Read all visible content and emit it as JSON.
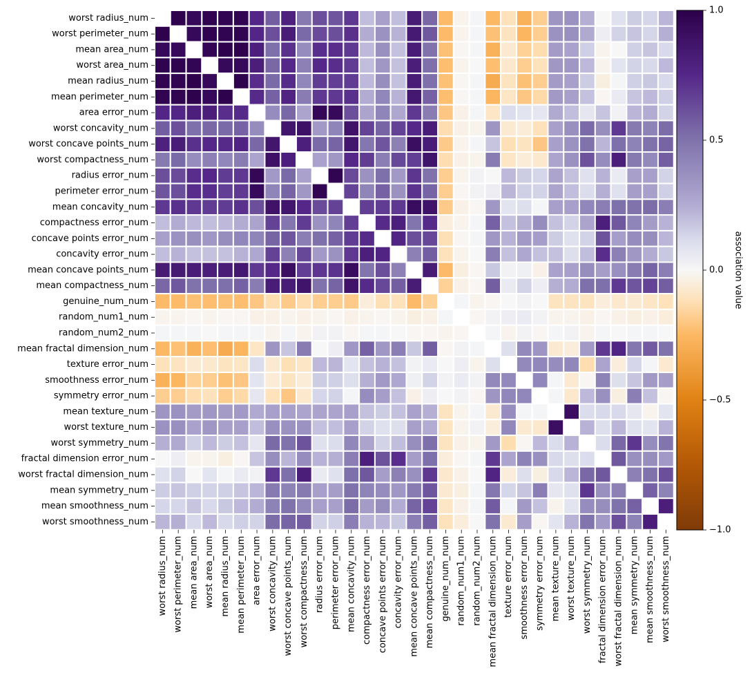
{
  "chart_data": {
    "type": "heatmap",
    "title": "",
    "xlabel": "",
    "ylabel": "",
    "labels": [
      "worst radius_num",
      "worst perimeter_num",
      "mean area_num",
      "worst area_num",
      "mean radius_num",
      "mean perimeter_num",
      "area error_num",
      "worst concavity_num",
      "worst concave points_num",
      "worst compactness_num",
      "radius error_num",
      "perimeter error_num",
      "mean concavity_num",
      "compactness error_num",
      "concave points error_num",
      "concavity error_num",
      "mean concave points_num",
      "mean compactness_num",
      "genuine_num_num",
      "random_num1_num",
      "random_num2_num",
      "mean fractal dimension_num",
      "texture error_num",
      "smoothness error_num",
      "symmetry error_num",
      "mean texture_num",
      "worst texture_num",
      "worst symmetry_num",
      "fractal dimension error_num",
      "worst fractal dimension_num",
      "mean symmetry_num",
      "mean smoothness_num",
      "worst smoothness_num"
    ],
    "values": [
      [
        null,
        0.99,
        0.94,
        0.98,
        0.97,
        0.97,
        0.76,
        0.57,
        0.79,
        0.47,
        0.62,
        0.6,
        0.69,
        0.2,
        0.3,
        0.2,
        0.83,
        0.54,
        -0.24,
        -0.02,
        0.01,
        -0.25,
        -0.11,
        -0.28,
        -0.18,
        0.35,
        0.36,
        0.24,
        0.0,
        0.09,
        0.16,
        0.13,
        0.22
      ],
      [
        0.99,
        null,
        0.94,
        0.98,
        0.97,
        0.97,
        0.76,
        0.62,
        0.82,
        0.53,
        0.63,
        0.62,
        0.72,
        0.25,
        0.36,
        0.23,
        0.84,
        0.59,
        -0.24,
        -0.02,
        0.01,
        -0.22,
        -0.1,
        -0.26,
        -0.18,
        0.36,
        0.37,
        0.26,
        0.04,
        0.14,
        0.18,
        0.13,
        0.24
      ],
      [
        0.94,
        0.94,
        null,
        0.96,
        0.99,
        0.99,
        0.8,
        0.51,
        0.72,
        0.39,
        0.73,
        0.73,
        0.69,
        0.21,
        0.37,
        0.19,
        0.82,
        0.5,
        -0.22,
        -0.01,
        0.01,
        -0.28,
        -0.07,
        -0.17,
        -0.13,
        0.32,
        0.29,
        0.15,
        -0.02,
        0.0,
        0.15,
        0.18,
        0.12
      ],
      [
        0.98,
        0.98,
        0.96,
        null,
        0.94,
        0.94,
        0.81,
        0.54,
        0.75,
        0.44,
        0.75,
        0.73,
        0.68,
        0.2,
        0.34,
        0.19,
        0.81,
        0.51,
        -0.23,
        -0.02,
        0.0,
        -0.23,
        -0.08,
        -0.18,
        -0.11,
        0.34,
        0.34,
        0.21,
        -0.02,
        0.08,
        0.14,
        0.12,
        0.21
      ],
      [
        0.97,
        0.97,
        0.99,
        0.94,
        null,
        0.99,
        0.73,
        0.53,
        0.74,
        0.41,
        0.68,
        0.67,
        0.68,
        0.21,
        0.38,
        0.19,
        0.82,
        0.51,
        -0.22,
        -0.01,
        0.01,
        -0.31,
        -0.1,
        -0.22,
        -0.18,
        0.32,
        0.3,
        0.16,
        -0.04,
        0.01,
        0.15,
        0.17,
        0.12
      ],
      [
        0.97,
        0.97,
        0.99,
        0.94,
        0.99,
        null,
        0.74,
        0.56,
        0.77,
        0.46,
        0.69,
        0.69,
        0.72,
        0.25,
        0.41,
        0.23,
        0.85,
        0.56,
        -0.23,
        -0.01,
        0.01,
        -0.26,
        -0.09,
        -0.2,
        -0.14,
        0.33,
        0.3,
        0.19,
        -0.01,
        0.05,
        0.18,
        0.21,
        0.15
      ],
      [
        0.76,
        0.76,
        0.8,
        0.81,
        0.73,
        0.74,
        null,
        0.39,
        0.54,
        0.28,
        0.95,
        0.94,
        0.62,
        0.28,
        0.42,
        0.27,
        0.69,
        0.46,
        -0.2,
        -0.03,
        0.01,
        -0.09,
        0.11,
        0.08,
        0.07,
        0.26,
        0.2,
        0.07,
        0.18,
        0.02,
        0.22,
        0.25,
        0.14
      ],
      [
        0.57,
        0.62,
        0.51,
        0.54,
        0.53,
        0.56,
        0.39,
        null,
        0.86,
        0.89,
        0.33,
        0.42,
        0.88,
        0.66,
        0.55,
        0.66,
        0.75,
        0.82,
        -0.13,
        -0.03,
        -0.02,
        0.35,
        -0.07,
        -0.06,
        -0.11,
        0.3,
        0.37,
        0.53,
        0.38,
        0.69,
        0.47,
        0.43,
        0.52
      ],
      [
        0.79,
        0.82,
        0.72,
        0.75,
        0.74,
        0.77,
        0.54,
        0.86,
        null,
        0.8,
        0.53,
        0.55,
        0.86,
        0.48,
        0.6,
        0.44,
        0.91,
        0.82,
        -0.19,
        -0.02,
        0.01,
        0.18,
        -0.12,
        -0.1,
        -0.2,
        0.3,
        0.36,
        0.5,
        0.22,
        0.51,
        0.43,
        0.5,
        0.55
      ],
      [
        0.47,
        0.53,
        0.39,
        0.44,
        0.41,
        0.46,
        0.28,
        0.89,
        0.8,
        null,
        0.29,
        0.34,
        0.75,
        0.68,
        0.45,
        0.64,
        0.67,
        0.87,
        -0.13,
        -0.03,
        -0.02,
        0.46,
        -0.09,
        -0.06,
        -0.08,
        0.28,
        0.36,
        0.61,
        0.39,
        0.81,
        0.47,
        0.4,
        0.57
      ],
      [
        0.62,
        0.63,
        0.73,
        0.75,
        0.68,
        0.69,
        0.95,
        0.33,
        0.53,
        0.29,
        null,
        0.97,
        0.63,
        0.36,
        0.51,
        0.33,
        0.7,
        0.5,
        -0.18,
        -0.02,
        0.02,
        0.0,
        0.21,
        0.16,
        0.13,
        0.28,
        0.19,
        0.09,
        0.23,
        0.05,
        0.3,
        0.3,
        0.14
      ],
      [
        0.6,
        0.62,
        0.73,
        0.73,
        0.67,
        0.69,
        0.94,
        0.42,
        0.55,
        0.34,
        0.97,
        null,
        0.66,
        0.42,
        0.56,
        0.36,
        0.71,
        0.55,
        -0.18,
        -0.01,
        0.02,
        0.04,
        0.22,
        0.15,
        0.14,
        0.28,
        0.2,
        0.11,
        0.24,
        0.09,
        0.31,
        0.3,
        0.15
      ],
      [
        0.69,
        0.72,
        0.69,
        0.68,
        0.68,
        0.72,
        0.62,
        0.88,
        0.86,
        0.75,
        0.63,
        0.66,
        null,
        0.67,
        0.68,
        0.69,
        0.92,
        0.88,
        -0.19,
        -0.03,
        -0.01,
        0.34,
        0.08,
        0.1,
        0.01,
        0.3,
        0.3,
        0.41,
        0.45,
        0.51,
        0.5,
        0.52,
        0.45
      ],
      [
        0.2,
        0.25,
        0.21,
        0.2,
        0.21,
        0.25,
        0.28,
        0.66,
        0.48,
        0.68,
        0.36,
        0.42,
        0.67,
        null,
        0.74,
        0.8,
        0.49,
        0.74,
        -0.05,
        -0.02,
        0.01,
        0.56,
        0.19,
        0.24,
        0.39,
        0.19,
        0.14,
        0.28,
        0.8,
        0.59,
        0.42,
        0.32,
        0.23
      ],
      [
        0.3,
        0.36,
        0.37,
        0.34,
        0.38,
        0.41,
        0.42,
        0.55,
        0.6,
        0.45,
        0.51,
        0.56,
        0.68,
        0.74,
        null,
        0.77,
        0.62,
        0.64,
        -0.12,
        -0.01,
        0.01,
        0.34,
        0.23,
        0.33,
        0.31,
        0.16,
        0.09,
        0.14,
        0.61,
        0.31,
        0.39,
        0.38,
        0.22
      ],
      [
        0.2,
        0.23,
        0.19,
        0.19,
        0.19,
        0.23,
        0.27,
        0.66,
        0.44,
        0.64,
        0.33,
        0.36,
        0.69,
        0.8,
        0.77,
        null,
        0.44,
        0.57,
        -0.11,
        -0.02,
        0.0,
        0.45,
        0.19,
        0.27,
        0.19,
        0.19,
        0.1,
        0.2,
        0.73,
        0.44,
        0.34,
        0.25,
        0.17
      ],
      [
        0.83,
        0.84,
        0.82,
        0.81,
        0.82,
        0.85,
        0.69,
        0.75,
        0.91,
        0.67,
        0.7,
        0.71,
        0.92,
        0.49,
        0.62,
        0.44,
        null,
        0.83,
        -0.24,
        -0.04,
        -0.01,
        0.17,
        0.02,
        0.03,
        -0.03,
        0.29,
        0.3,
        0.38,
        0.31,
        0.37,
        0.46,
        0.55,
        0.45
      ],
      [
        0.54,
        0.59,
        0.5,
        0.51,
        0.51,
        0.56,
        0.46,
        0.82,
        0.82,
        0.87,
        0.5,
        0.55,
        0.88,
        0.74,
        0.64,
        0.57,
        0.83,
        null,
        -0.17,
        -0.03,
        -0.01,
        0.57,
        0.05,
        0.14,
        0.04,
        0.24,
        0.25,
        0.51,
        0.51,
        0.69,
        0.6,
        0.66,
        0.57
      ],
      [
        -0.24,
        -0.24,
        -0.22,
        -0.23,
        -0.22,
        -0.23,
        -0.2,
        -0.13,
        -0.19,
        -0.13,
        -0.18,
        -0.18,
        -0.19,
        -0.05,
        -0.12,
        -0.11,
        -0.24,
        -0.17,
        null,
        0.01,
        -0.02,
        -0.01,
        0.0,
        0.02,
        0.0,
        -0.1,
        -0.1,
        -0.1,
        -0.05,
        -0.08,
        -0.07,
        -0.09,
        -0.11
      ],
      [
        -0.02,
        -0.02,
        -0.01,
        -0.02,
        -0.01,
        -0.01,
        -0.03,
        -0.03,
        -0.02,
        -0.03,
        -0.02,
        -0.01,
        -0.03,
        -0.02,
        -0.01,
        -0.02,
        -0.04,
        -0.03,
        0.01,
        null,
        -0.01,
        0.02,
        0.04,
        0.05,
        0.02,
        -0.02,
        -0.02,
        -0.03,
        -0.01,
        -0.03,
        -0.04,
        -0.03,
        -0.05
      ],
      [
        0.01,
        0.01,
        0.01,
        0.0,
        0.01,
        0.01,
        0.01,
        -0.02,
        0.01,
        -0.02,
        0.02,
        0.02,
        -0.01,
        0.01,
        0.01,
        0.0,
        -0.01,
        -0.01,
        -0.02,
        -0.01,
        null,
        0.01,
        -0.02,
        0.02,
        -0.01,
        0.01,
        0.02,
        -0.02,
        0.01,
        0.0,
        0.01,
        0.01,
        0.0
      ],
      [
        -0.25,
        -0.22,
        -0.28,
        -0.23,
        -0.31,
        -0.26,
        -0.09,
        0.35,
        0.18,
        0.46,
        0.0,
        0.04,
        0.34,
        0.56,
        0.34,
        0.45,
        0.17,
        0.57,
        -0.01,
        0.02,
        0.01,
        null,
        0.1,
        0.4,
        0.35,
        -0.07,
        -0.05,
        0.33,
        0.69,
        0.77,
        0.48,
        0.58,
        0.5
      ],
      [
        -0.11,
        -0.1,
        -0.07,
        -0.08,
        -0.1,
        -0.09,
        0.11,
        -0.07,
        -0.12,
        -0.09,
        0.21,
        0.22,
        0.08,
        0.19,
        0.23,
        0.19,
        0.02,
        0.05,
        0.0,
        0.04,
        -0.02,
        0.1,
        null,
        0.4,
        0.41,
        0.39,
        0.41,
        -0.13,
        0.28,
        -0.05,
        0.13,
        0.01,
        -0.07
      ],
      [
        -0.28,
        -0.26,
        -0.17,
        -0.18,
        -0.22,
        -0.2,
        0.08,
        -0.06,
        -0.1,
        -0.06,
        0.16,
        0.15,
        0.1,
        0.24,
        0.33,
        0.27,
        0.03,
        0.14,
        0.02,
        0.05,
        0.02,
        0.4,
        0.4,
        null,
        0.41,
        0.01,
        -0.07,
        -0.01,
        0.43,
        0.1,
        0.18,
        0.33,
        0.31
      ],
      [
        -0.18,
        -0.18,
        -0.13,
        -0.11,
        -0.18,
        -0.14,
        0.07,
        -0.11,
        -0.2,
        -0.08,
        0.13,
        0.14,
        0.01,
        0.39,
        0.31,
        0.19,
        -0.03,
        0.04,
        0.0,
        0.02,
        -0.01,
        0.35,
        0.41,
        0.41,
        null,
        0.01,
        -0.08,
        0.21,
        0.37,
        -0.04,
        0.45,
        0.19,
        -0.01
      ],
      [
        0.35,
        0.36,
        0.32,
        0.34,
        0.32,
        0.33,
        0.26,
        0.3,
        0.3,
        0.28,
        0.28,
        0.28,
        0.3,
        0.19,
        0.16,
        0.19,
        0.29,
        0.24,
        -0.1,
        -0.02,
        0.01,
        -0.07,
        0.39,
        0.01,
        0.01,
        null,
        0.91,
        0.11,
        0.12,
        0.12,
        0.07,
        -0.02,
        0.08
      ],
      [
        0.36,
        0.37,
        0.29,
        0.34,
        0.3,
        0.3,
        0.2,
        0.37,
        0.36,
        0.36,
        0.19,
        0.2,
        0.3,
        0.14,
        0.09,
        0.1,
        0.3,
        0.25,
        -0.1,
        -0.02,
        0.02,
        -0.05,
        0.41,
        -0.07,
        -0.08,
        0.91,
        null,
        0.23,
        0.1,
        0.22,
        0.09,
        0.08,
        0.23
      ],
      [
        0.24,
        0.26,
        0.15,
        0.21,
        0.16,
        0.19,
        0.07,
        0.53,
        0.5,
        0.61,
        0.09,
        0.11,
        0.41,
        0.28,
        0.14,
        0.2,
        0.38,
        0.51,
        -0.1,
        -0.03,
        -0.02,
        0.33,
        -0.13,
        -0.01,
        0.21,
        0.11,
        0.23,
        null,
        0.11,
        0.54,
        0.7,
        0.39,
        0.49
      ],
      [
        0.0,
        0.04,
        -0.02,
        -0.02,
        -0.04,
        -0.01,
        0.18,
        0.38,
        0.22,
        0.39,
        0.23,
        0.24,
        0.45,
        0.8,
        0.61,
        0.73,
        0.31,
        0.51,
        -0.05,
        -0.01,
        0.01,
        0.69,
        0.28,
        0.43,
        0.37,
        0.12,
        0.1,
        0.11,
        null,
        0.59,
        0.37,
        0.38,
        0.33
      ],
      [
        0.09,
        0.14,
        0.0,
        0.08,
        0.01,
        0.05,
        0.02,
        0.69,
        0.51,
        0.81,
        0.05,
        0.09,
        0.51,
        0.59,
        0.31,
        0.44,
        0.37,
        0.69,
        -0.08,
        -0.03,
        0.0,
        0.77,
        -0.05,
        0.1,
        -0.04,
        0.12,
        0.22,
        0.54,
        0.59,
        null,
        0.44,
        0.5,
        0.62
      ],
      [
        0.16,
        0.18,
        0.15,
        0.14,
        0.15,
        0.18,
        0.22,
        0.47,
        0.43,
        0.47,
        0.3,
        0.31,
        0.5,
        0.42,
        0.39,
        0.34,
        0.46,
        0.6,
        -0.07,
        -0.04,
        0.01,
        0.48,
        0.13,
        0.18,
        0.45,
        0.07,
        0.09,
        0.7,
        0.37,
        0.44,
        null,
        0.56,
        0.43
      ],
      [
        0.13,
        0.13,
        0.18,
        0.12,
        0.17,
        0.21,
        0.25,
        0.43,
        0.5,
        0.4,
        0.3,
        0.3,
        0.52,
        0.32,
        0.38,
        0.25,
        0.55,
        0.66,
        -0.09,
        -0.03,
        0.01,
        0.58,
        0.01,
        0.33,
        0.19,
        -0.02,
        0.08,
        0.39,
        0.38,
        0.5,
        0.56,
        null,
        0.81
      ],
      [
        0.22,
        0.24,
        0.12,
        0.21,
        0.12,
        0.15,
        0.14,
        0.52,
        0.55,
        0.57,
        0.14,
        0.15,
        0.45,
        0.23,
        0.22,
        0.17,
        0.45,
        0.57,
        -0.11,
        -0.05,
        0.0,
        0.5,
        -0.07,
        0.31,
        -0.01,
        0.08,
        0.23,
        0.49,
        0.33,
        0.62,
        0.43,
        0.81,
        null
      ]
    ],
    "colorbar": {
      "label": "association value",
      "ticks": [
        "1.0",
        "0.5",
        "0.0",
        "−0.5",
        "−1.0"
      ],
      "range": [
        -1.0,
        1.0
      ],
      "colormap": "PuOr"
    },
    "grid": true
  }
}
